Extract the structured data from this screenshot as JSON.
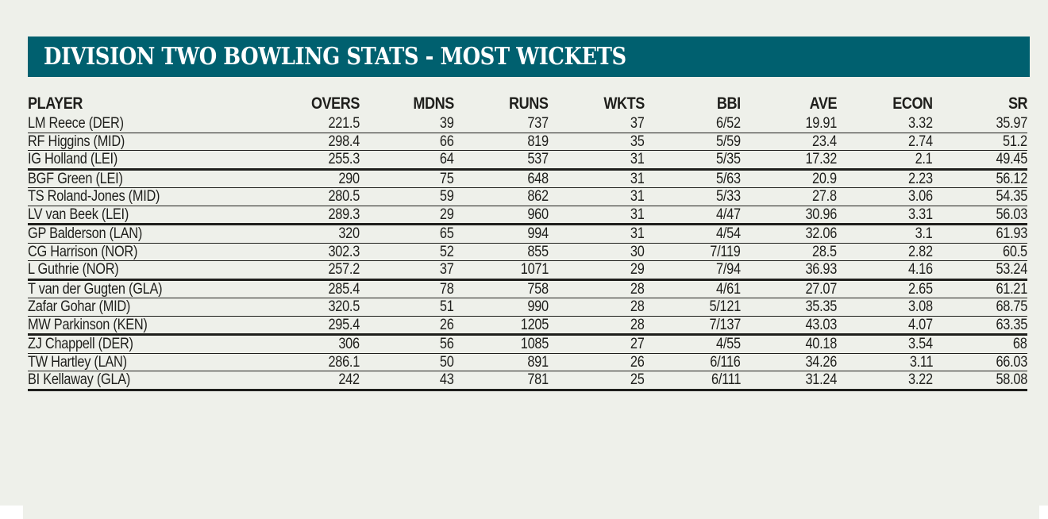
{
  "banner": {
    "title": "DIVISION TWO BOWLING STATS - MOST WICKETS",
    "background_color": "#00606f"
  },
  "table": {
    "columns": [
      "PLAYER",
      "OVERS",
      "MDNS",
      "RUNS",
      "WKTS",
      "BBI",
      "AVE",
      "ECON",
      "SR"
    ],
    "rows": [
      [
        "LM Reece (DER)",
        "221.5",
        "39",
        "737",
        "37",
        "6/52",
        "19.91",
        "3.32",
        "35.97"
      ],
      [
        "RF Higgins (MID)",
        "298.4",
        "66",
        "819",
        "35",
        "5/59",
        "23.4",
        "2.74",
        "51.2"
      ],
      [
        "IG Holland (LEI)",
        "255.3",
        "64",
        "537",
        "31",
        "5/35",
        "17.32",
        "2.1",
        "49.45"
      ],
      [
        "BGF Green (LEI)",
        "290",
        "75",
        "648",
        "31",
        "5/63",
        "20.9",
        "2.23",
        "56.12"
      ],
      [
        "TS Roland-Jones (MID)",
        "280.5",
        "59",
        "862",
        "31",
        "5/33",
        "27.8",
        "3.06",
        "54.35"
      ],
      [
        "LV van Beek (LEI)",
        "289.3",
        "29",
        "960",
        "31",
        "4/47",
        "30.96",
        "3.31",
        "56.03"
      ],
      [
        "GP Balderson (LAN)",
        "320",
        "65",
        "994",
        "31",
        "4/54",
        "32.06",
        "3.1",
        "61.93"
      ],
      [
        "CG Harrison (NOR)",
        "302.3",
        "52",
        "855",
        "30",
        "7/119",
        "28.5",
        "2.82",
        "60.5"
      ],
      [
        "L Guthrie (NOR)",
        "257.2",
        "37",
        "1071",
        "29",
        "7/94",
        "36.93",
        "4.16",
        "53.24"
      ],
      [
        "T van der Gugten (GLA)",
        "285.4",
        "78",
        "758",
        "28",
        "4/61",
        "27.07",
        "2.65",
        "61.21"
      ],
      [
        "Zafar Gohar (MID)",
        "320.5",
        "51",
        "990",
        "28",
        "5/121",
        "35.35",
        "3.08",
        "68.75"
      ],
      [
        "MW Parkinson (KEN)",
        "295.4",
        "26",
        "1205",
        "28",
        "7/137",
        "43.03",
        "4.07",
        "63.35"
      ],
      [
        "ZJ Chappell (DER)",
        "306",
        "56",
        "1085",
        "27",
        "4/55",
        "40.18",
        "3.54",
        "68"
      ],
      [
        "TW Hartley (LAN)",
        "286.1",
        "50",
        "891",
        "26",
        "6/116",
        "34.26",
        "3.11",
        "66.03"
      ],
      [
        "BI Kellaway (GLA)",
        "242",
        "43",
        "781",
        "25",
        "6/111",
        "31.24",
        "3.22",
        "58.08"
      ]
    ]
  }
}
